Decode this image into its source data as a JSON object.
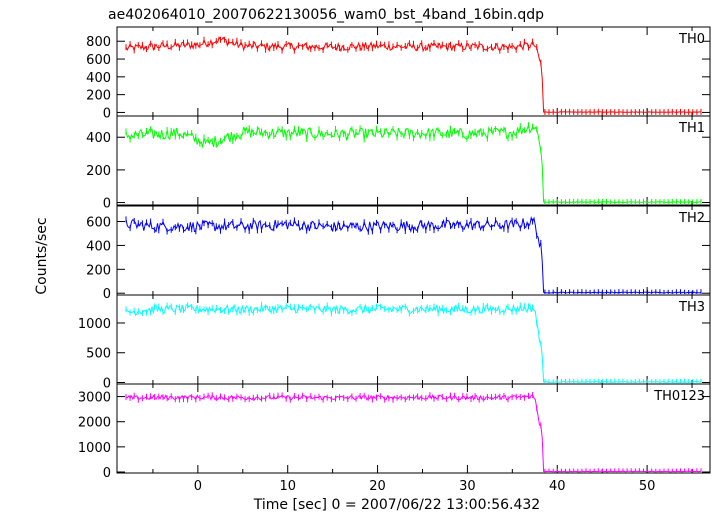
{
  "chart_data": {
    "type": "line",
    "title": "ae402064010_20070622130056_wam0_bst_4band_16bin.qdp",
    "xlabel": "Time [sec] 0 = 2007/06/22 13:00:56.432",
    "ylabel": "Counts/sec",
    "xlim": [
      -9,
      57
    ],
    "x_ticks": [
      0,
      10,
      20,
      30,
      40,
      50
    ],
    "x_tick_labels": [
      "0",
      "10",
      "20",
      "30",
      "40",
      "50"
    ],
    "drop_time": 38.2,
    "panels": [
      {
        "name": "TH0",
        "color": "#ff0000",
        "ylim": [
          -40,
          960
        ],
        "y_ticks": [
          0,
          200,
          400,
          600,
          800
        ],
        "y_tick_labels": [
          "0",
          "200",
          "400",
          "600",
          "800"
        ],
        "mean_before": 740,
        "amplitude": 45,
        "after_level": 4,
        "trace": [
          [
            -8,
            720
          ],
          [
            -5,
            740
          ],
          [
            0,
            760
          ],
          [
            2.5,
            820
          ],
          [
            5,
            745
          ],
          [
            10,
            740
          ],
          [
            15,
            735
          ],
          [
            20,
            745
          ],
          [
            25,
            735
          ],
          [
            30,
            740
          ],
          [
            35,
            735
          ],
          [
            37.5,
            760
          ],
          [
            38,
            600
          ],
          [
            38.3,
            500
          ],
          [
            38.4,
            4
          ],
          [
            56,
            4
          ]
        ]
      },
      {
        "name": "TH1",
        "color": "#00ff00",
        "ylim": [
          -15,
          530
        ],
        "y_ticks": [
          0,
          200,
          400
        ],
        "y_tick_labels": [
          "0",
          "200",
          "400"
        ],
        "mean_before": 425,
        "amplitude": 35,
        "after_level": 3,
        "trace": [
          [
            -8,
            410
          ],
          [
            -2,
            425
          ],
          [
            1,
            360
          ],
          [
            5,
            430
          ],
          [
            10,
            425
          ],
          [
            15,
            420
          ],
          [
            20,
            420
          ],
          [
            25,
            425
          ],
          [
            30,
            420
          ],
          [
            35,
            430
          ],
          [
            37.5,
            470
          ],
          [
            38,
            390
          ],
          [
            38.3,
            300
          ],
          [
            38.4,
            3
          ],
          [
            56,
            3
          ]
        ]
      },
      {
        "name": "TH2",
        "color": "#0000ff",
        "ylim": [
          -15,
          730
        ],
        "y_ticks": [
          0,
          200,
          400,
          600
        ],
        "y_tick_labels": [
          "0",
          "200",
          "400",
          "600"
        ],
        "mean_before": 560,
        "amplitude": 45,
        "after_level": 6,
        "trace": [
          [
            -8,
            580
          ],
          [
            -5,
            560
          ],
          [
            0,
            560
          ],
          [
            5,
            560
          ],
          [
            10,
            575
          ],
          [
            15,
            555
          ],
          [
            20,
            560
          ],
          [
            25,
            565
          ],
          [
            30,
            570
          ],
          [
            35,
            570
          ],
          [
            37.5,
            600
          ],
          [
            38,
            420
          ],
          [
            38.3,
            350
          ],
          [
            38.4,
            6
          ],
          [
            56,
            6
          ]
        ]
      },
      {
        "name": "TH3",
        "color": "#00ffff",
        "ylim": [
          -25,
          1470
        ],
        "y_ticks": [
          0,
          500,
          1000
        ],
        "y_tick_labels": [
          "0",
          "500",
          "1000"
        ],
        "mean_before": 1230,
        "amplitude": 70,
        "after_level": 10,
        "trace": [
          [
            -8,
            1180
          ],
          [
            -5,
            1230
          ],
          [
            0,
            1235
          ],
          [
            5,
            1230
          ],
          [
            10,
            1240
          ],
          [
            15,
            1225
          ],
          [
            20,
            1230
          ],
          [
            25,
            1235
          ],
          [
            30,
            1225
          ],
          [
            35,
            1240
          ],
          [
            37.5,
            1250
          ],
          [
            38,
            700
          ],
          [
            38.3,
            600
          ],
          [
            38.4,
            10
          ],
          [
            56,
            10
          ]
        ]
      },
      {
        "name": "TH0123",
        "color": "#ff00ff",
        "ylim": [
          -40,
          3500
        ],
        "y_ticks": [
          0,
          1000,
          2000,
          3000
        ],
        "y_tick_labels": [
          "0",
          "1000",
          "2000",
          "3000"
        ],
        "mean_before": 2960,
        "amplitude": 90,
        "after_level": 20,
        "trace": [
          [
            -8,
            2940
          ],
          [
            -5,
            2960
          ],
          [
            0,
            2970
          ],
          [
            5,
            2955
          ],
          [
            10,
            2960
          ],
          [
            15,
            2950
          ],
          [
            20,
            2960
          ],
          [
            25,
            2965
          ],
          [
            30,
            2955
          ],
          [
            35,
            2960
          ],
          [
            37.5,
            3000
          ],
          [
            38,
            1900
          ],
          [
            38.3,
            1800
          ],
          [
            38.4,
            20
          ],
          [
            56,
            20
          ]
        ]
      }
    ]
  }
}
